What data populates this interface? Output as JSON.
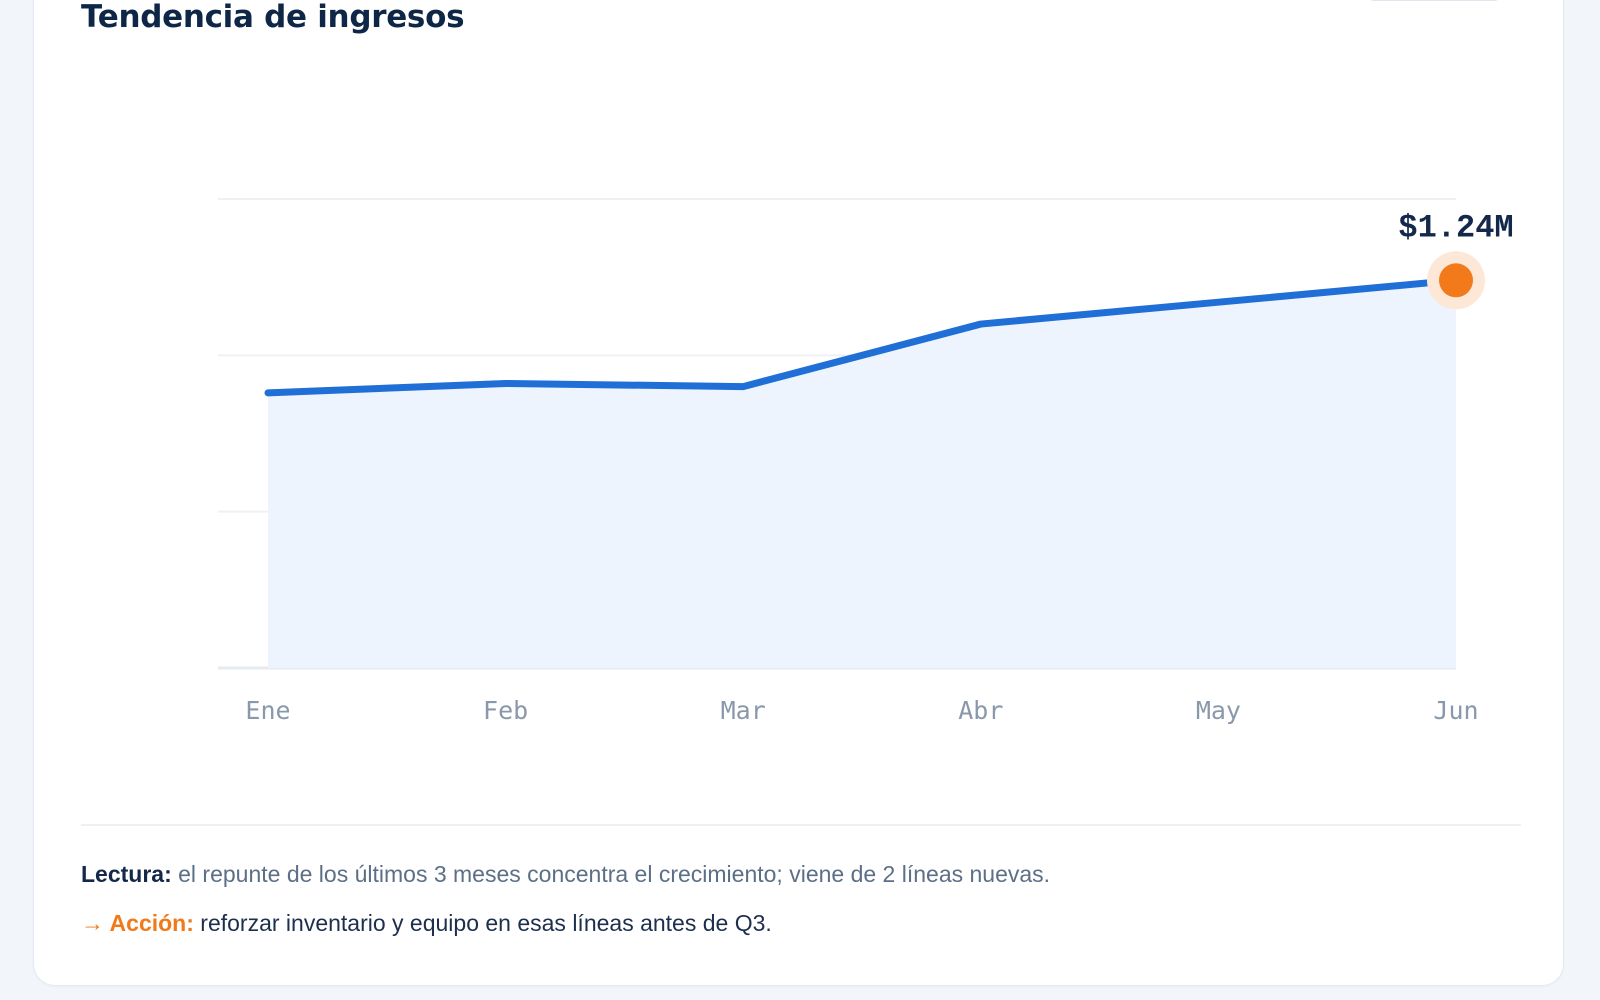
{
  "card": {
    "title": "Tendencia de ingresos"
  },
  "chart_data": {
    "type": "area",
    "title": "Tendencia de ingresos",
    "xlabel": "",
    "ylabel": "",
    "categories": [
      "Ene",
      "Feb",
      "Mar",
      "Abr",
      "May",
      "Jun"
    ],
    "series": [
      {
        "values": [
          0.88,
          0.91,
          0.9,
          1.1,
          1.17,
          1.24
        ]
      }
    ],
    "ylim": [
      0,
      1.5
    ],
    "grid": true,
    "highlight": {
      "category": "Jun",
      "label": "$1.24M"
    },
    "colors": {
      "line": "#1f6fd6",
      "fill": "#eef4fd",
      "highlight": "#f27a1a",
      "highlight_halo": "#fde8d8",
      "grid": "#edf1f5",
      "tick_text": "#8a98ab",
      "label_text": "#14284a"
    }
  },
  "insights": {
    "reading_label": "Lectura:",
    "reading_text": "el repunte de los últimos 3 meses concentra el crecimiento; viene de 2 líneas nuevas.",
    "action_label": "→ Acción:",
    "action_text": "reforzar inventario y equipo en esas líneas antes de Q3."
  }
}
